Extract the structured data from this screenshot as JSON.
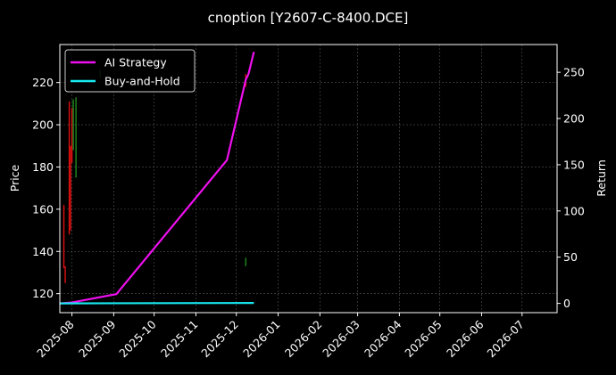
{
  "chart_data": {
    "type": "line",
    "title": "cnoption [Y2607-C-8400.DCE]",
    "xlabel": "",
    "ylabel": "Price",
    "y2label": "Return",
    "xlim": [
      "2025-07-23",
      "2026-07-27"
    ],
    "ylim": [
      111,
      238
    ],
    "y2lim": [
      -10,
      280
    ],
    "x_ticks": [
      "2025-08",
      "2025-09",
      "2025-10",
      "2025-11",
      "2025-12",
      "2026-01",
      "2026-02",
      "2026-03",
      "2026-04",
      "2026-05",
      "2026-06",
      "2026-07"
    ],
    "y_ticks": [
      120,
      140,
      160,
      180,
      200,
      220
    ],
    "y2_ticks": [
      0,
      50,
      100,
      150,
      200,
      250
    ],
    "grid": true,
    "legend_position": "top-left",
    "colors": {
      "background": "#000000",
      "grid": "#555555",
      "up": "#1f8a1f",
      "down": "#e01010",
      "ai_strategy": "#ee10ee",
      "buy_hold": "#18e8f0"
    },
    "price_segments": [
      {
        "date": "2025-07-26",
        "low": 132,
        "high": 162,
        "direction": "down"
      },
      {
        "date": "2025-07-27",
        "low": 125,
        "high": 133,
        "direction": "down"
      },
      {
        "date": "2025-07-30",
        "low": 148,
        "high": 211,
        "direction": "down"
      },
      {
        "date": "2025-07-31",
        "low": 150,
        "high": 190,
        "direction": "down"
      },
      {
        "date": "2025-08-01",
        "low": 182,
        "high": 208,
        "direction": "down"
      },
      {
        "date": "2025-08-02",
        "low": 188,
        "high": 212,
        "direction": "up"
      },
      {
        "date": "2025-08-04",
        "low": 175,
        "high": 213,
        "direction": "up"
      },
      {
        "date": "2025-08-22",
        "low": 222,
        "high": 226,
        "direction": "up"
      },
      {
        "date": "2025-12-08",
        "low": 133,
        "high": 137,
        "direction": "up"
      },
      {
        "date": "2025-12-08",
        "low": 218,
        "high": 224,
        "direction": "down"
      }
    ],
    "series": [
      {
        "name": "AI Strategy",
        "axis": "right",
        "points": [
          [
            "2025-07-23",
            0
          ],
          [
            "2025-08-01",
            1
          ],
          [
            "2025-09-03",
            10
          ],
          [
            "2025-11-24",
            155
          ],
          [
            "2025-12-08",
            242
          ],
          [
            "2025-12-10",
            248
          ],
          [
            "2025-12-14",
            272
          ]
        ]
      },
      {
        "name": "Buy-and-Hold",
        "axis": "right",
        "points": [
          [
            "2025-07-23",
            0
          ],
          [
            "2025-12-14",
            0.5
          ]
        ]
      }
    ]
  }
}
